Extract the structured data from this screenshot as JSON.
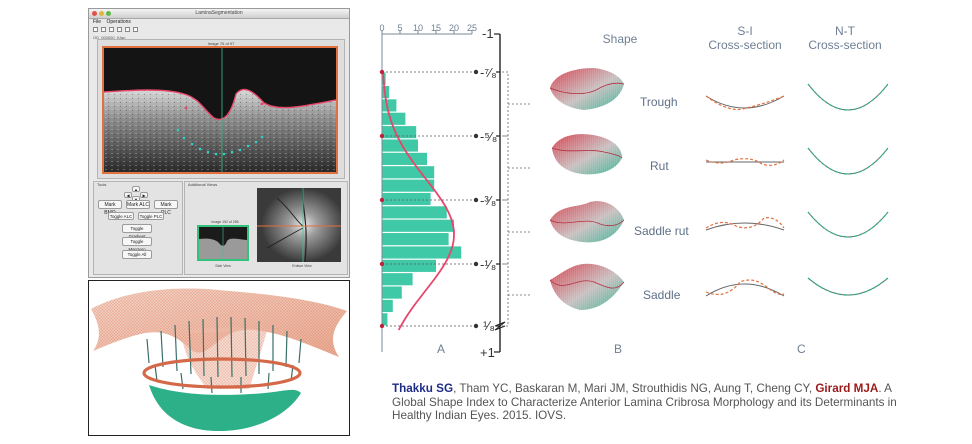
{
  "app": {
    "window_title": "LaminaSegmentation",
    "menu": [
      "File",
      "Operations"
    ],
    "file_label": "OD_000000_9Jan",
    "image_label": "Image 76 of 97",
    "groups": {
      "tools": "Tools",
      "additional": "Additional Views"
    },
    "arrows": [
      "▲",
      "◀",
      "▶",
      "▼"
    ],
    "buttons": {
      "mark_bmo": "Mark BMO",
      "mark_alc": "Mark ALC",
      "mark_plc": "Mark PLC",
      "toggle_alc": "Toggle ALC",
      "toggle_plc": "Toggle PLC",
      "toggle_gradient": "Toggle Gradient",
      "toggle_mapzero": "Toggle Mapzero",
      "toggle_all": "Toggle All"
    },
    "thumb_label": "Image 192 of 256",
    "side_view_label": "Side View",
    "enface_view_label": "Enface View"
  },
  "figure": {
    "top_axis_ticks": [
      "0",
      "5",
      "10",
      "15",
      "20",
      "25"
    ],
    "shape_index_ticks": [
      "-1",
      "-⁷⁄₈",
      "-⁵⁄₈",
      "-³⁄₈",
      "-¹⁄₈",
      "¹⁄₈",
      "+1"
    ],
    "col_headers": {
      "shape": "Shape",
      "si_line1": "S-I",
      "si_line2": "Cross-section",
      "nt_line1": "N-T",
      "nt_line2": "Cross-section"
    },
    "shapes": [
      "Trough",
      "Rut",
      "Saddle rut",
      "Saddle"
    ],
    "panel_letters": [
      "A",
      "B",
      "C"
    ]
  },
  "chart_data": {
    "type": "bar",
    "orientation": "horizontal",
    "xlim": [
      0,
      25
    ],
    "ylim_labels": [
      "-1",
      "+1"
    ],
    "bins": [
      {
        "label": "-1",
        "value": 1
      },
      {
        "label": "",
        "value": 2
      },
      {
        "label": "",
        "value": 4
      },
      {
        "label": "",
        "value": 6.5
      },
      {
        "label": "",
        "value": 9.5
      },
      {
        "label": "",
        "value": 10
      },
      {
        "label": "",
        "value": 12.5
      },
      {
        "label": "",
        "value": 14.5
      },
      {
        "label": "",
        "value": 14.5
      },
      {
        "label": "",
        "value": 13.5
      },
      {
        "label": "",
        "value": 18
      },
      {
        "label": "",
        "value": 20
      },
      {
        "label": "",
        "value": 18.5
      },
      {
        "label": "",
        "value": 22
      },
      {
        "label": "",
        "value": 15
      },
      {
        "label": "",
        "value": 8.5
      },
      {
        "label": "",
        "value": 5.5
      },
      {
        "label": "",
        "value": 3
      },
      {
        "label": "",
        "value": 1.5
      }
    ],
    "colors": {
      "bars": "#40c9a6",
      "curve": "#e8456b",
      "axis": "#6f7f94"
    }
  },
  "citation": {
    "author1": "Thakku SG",
    "middle": ", Tham YC, Baskaran M, Mari JM, Strouthidis NG, Aung T, Cheng CY, ",
    "author_last": "Girard MJA",
    "rest": ". A Global Shape Index to Characterize Anterior Lamina Cribrosa Morphology and its Determinants in Healthy Indian Eyes. 2015. IOVS."
  }
}
